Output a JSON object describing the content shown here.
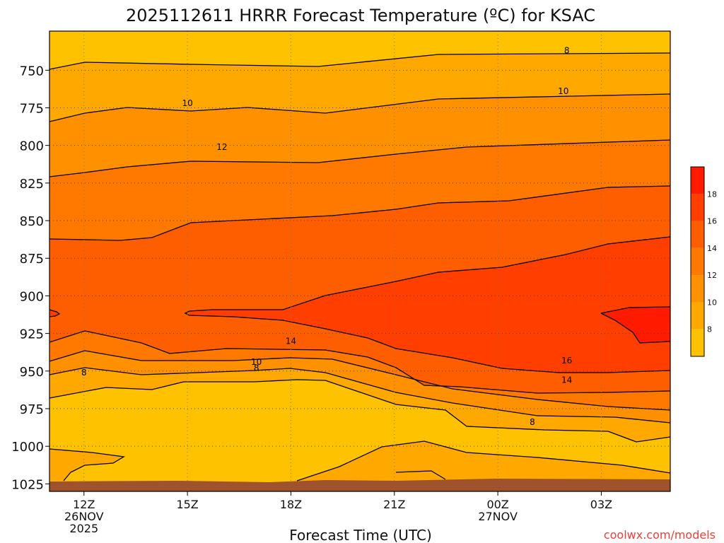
{
  "chart_data": {
    "type": "contour",
    "title": "2025112611 HRRR Forecast Temperature (ºC) for KSAC",
    "xlabel": "Forecast Time (UTC)",
    "ylabel": "",
    "credit": "coolwx.com/models",
    "x_ticks": [
      {
        "label": "12Z",
        "date1": "26NOV",
        "date2": "2025",
        "hour": 12
      },
      {
        "label": "15Z",
        "date1": "",
        "date2": "",
        "hour": 15
      },
      {
        "label": "18Z",
        "date1": "",
        "date2": "",
        "hour": 18
      },
      {
        "label": "21Z",
        "date1": "",
        "date2": "",
        "hour": 21
      },
      {
        "label": "00Z",
        "date1": "27NOV",
        "date2": "",
        "hour": 24
      },
      {
        "label": "03Z",
        "date1": "",
        "date2": "",
        "hour": 27
      }
    ],
    "xlim": [
      11,
      29
    ],
    "y_ticks": [
      750,
      775,
      800,
      825,
      850,
      875,
      900,
      925,
      950,
      975,
      1000,
      1025
    ],
    "ylim": [
      724,
      1030
    ],
    "y_axis": "pressure (hPa), increasing downward",
    "grid": true,
    "contour_interval": 2,
    "colorbar": {
      "labels": [
        "8",
        "10",
        "12",
        "14",
        "16",
        "18"
      ],
      "colors": [
        "#FFC200",
        "#FFA800",
        "#FF9000",
        "#FF7800",
        "#FF5E00",
        "#FF3E00",
        "#FF1A00"
      ]
    },
    "fill_colors": {
      "lt8": "#FFC200",
      "8_10": "#FFA800",
      "10_12": "#FF9000",
      "12_14": "#FF7800",
      "14_16": "#FF5E00",
      "16_18": "#FF3E00",
      "ground": "#A0522D"
    },
    "contour_labels": [
      {
        "text": "8",
        "hour": 26.0,
        "p": 737
      },
      {
        "text": "10",
        "hour": 25.9,
        "p": 764
      },
      {
        "text": "10",
        "hour": 15.0,
        "p": 772
      },
      {
        "text": "12",
        "hour": 16.0,
        "p": 801
      },
      {
        "text": "14",
        "hour": 18.0,
        "p": 930
      },
      {
        "text": "10",
        "hour": 17.0,
        "p": 944
      },
      {
        "text": "8",
        "hour": 17.0,
        "p": 948
      },
      {
        "text": "8",
        "hour": 12.0,
        "p": 951
      },
      {
        "text": "16",
        "hour": 26.0,
        "p": 943
      },
      {
        "text": "14",
        "hour": 26.0,
        "p": 956
      },
      {
        "text": "8",
        "hour": 25.0,
        "p": 984
      }
    ]
  }
}
